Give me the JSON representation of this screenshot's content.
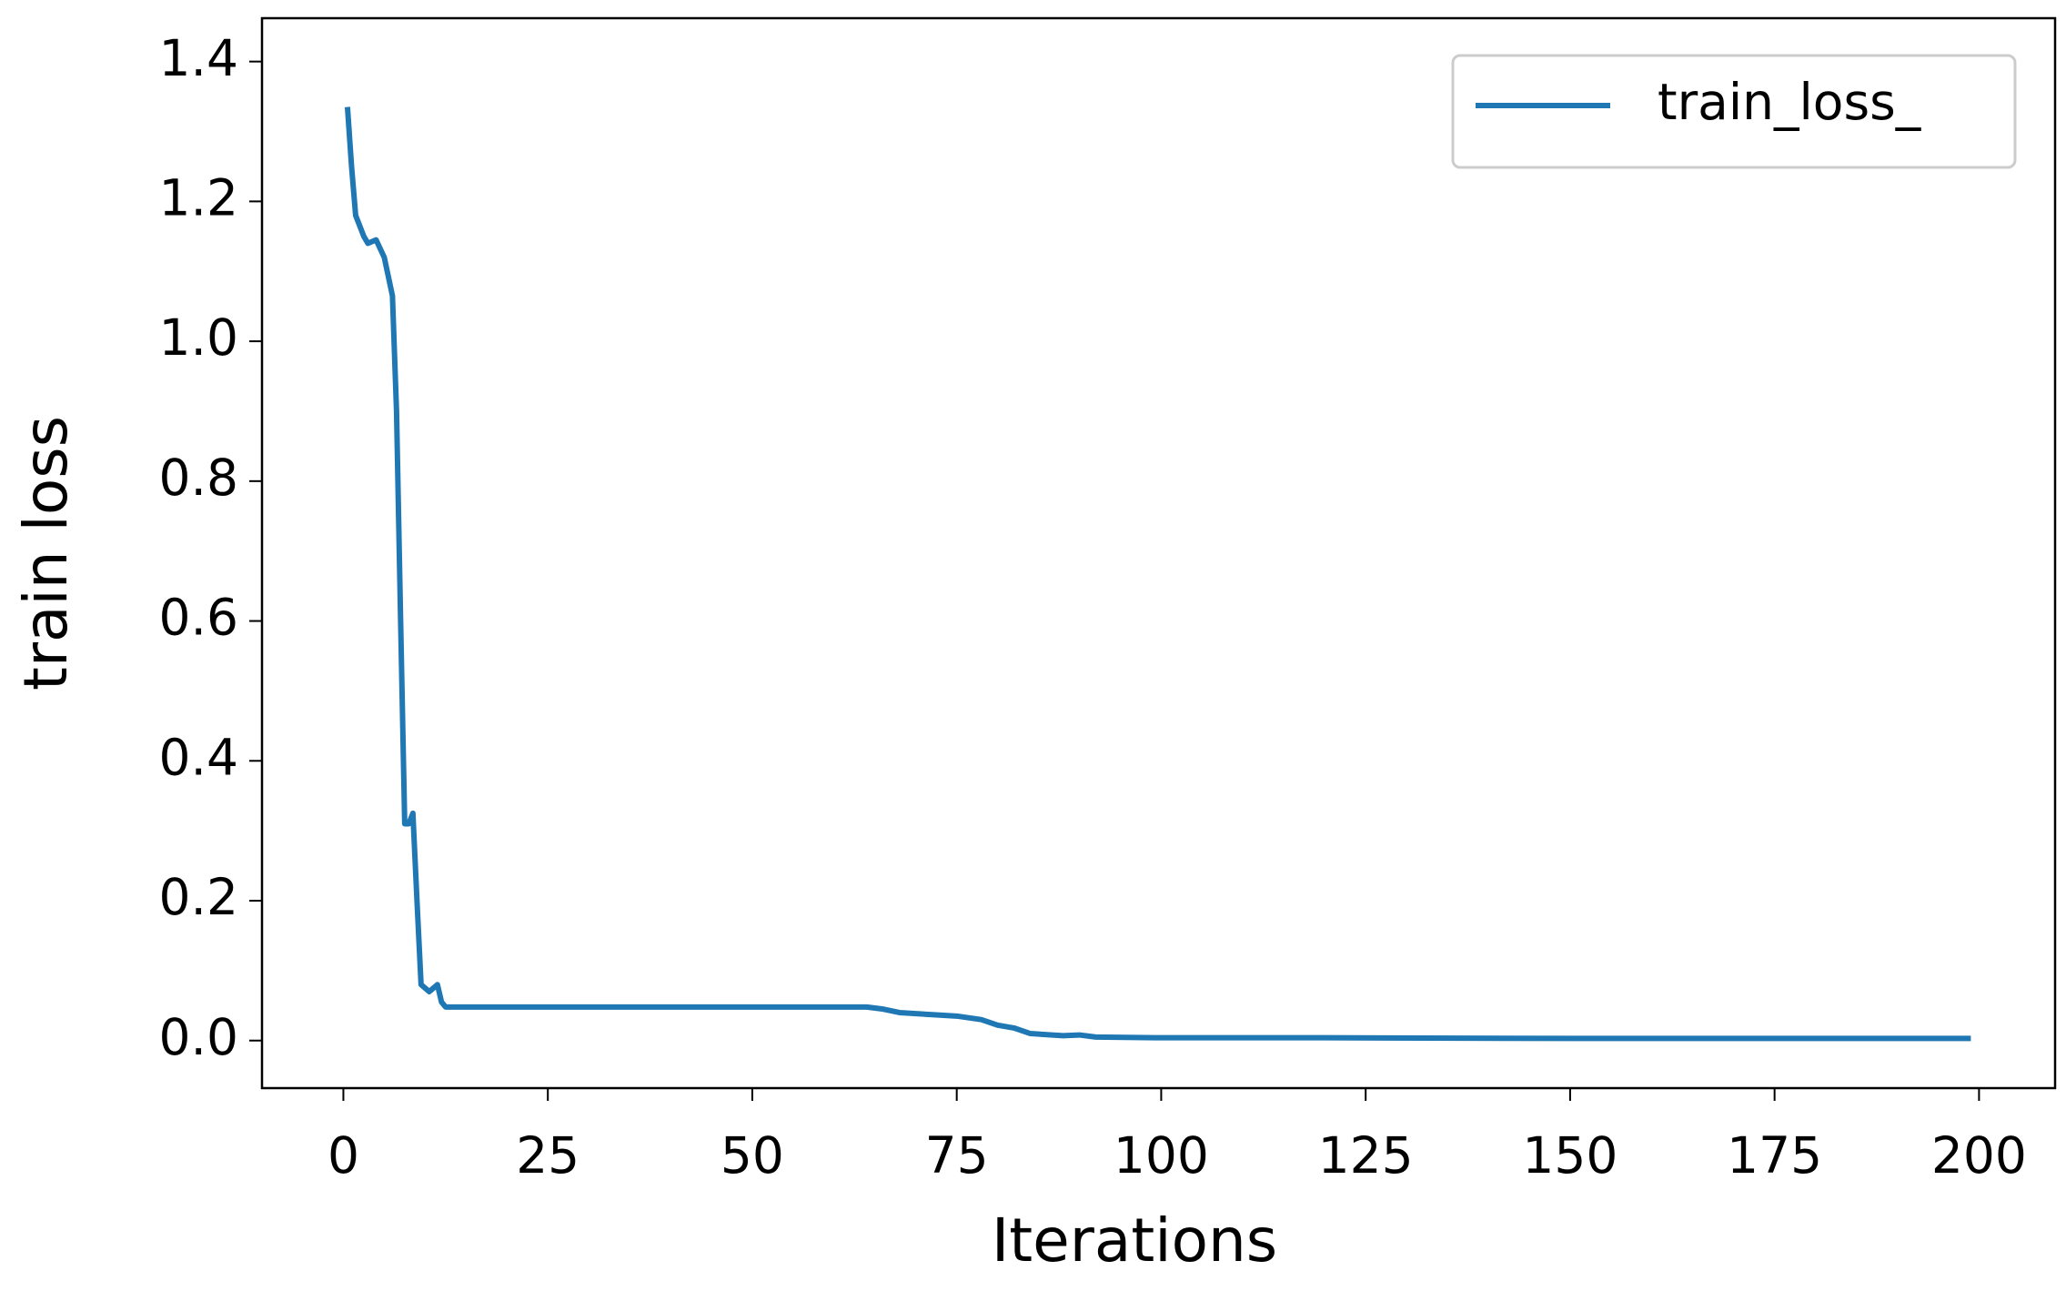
{
  "chart_data": {
    "type": "line",
    "xlabel": "Iterations",
    "ylabel": "train loss",
    "x": [
      0.5,
      1,
      1.5,
      2.5,
      3,
      4,
      5,
      6,
      6.5,
      7,
      7.5,
      8,
      8.5,
      9,
      9.5,
      10,
      10.5,
      11.5,
      12,
      12.5,
      15,
      25,
      50,
      64,
      66,
      68,
      72,
      75,
      78,
      80,
      82,
      84,
      88,
      90,
      92,
      100,
      120,
      150,
      175,
      199
    ],
    "series": [
      {
        "name": "train_loss_",
        "color": "#1f77b4",
        "values": [
          1.335,
          1.25,
          1.18,
          1.15,
          1.14,
          1.145,
          1.12,
          1.065,
          0.9,
          0.6,
          0.31,
          0.31,
          0.325,
          0.2,
          0.08,
          0.075,
          0.07,
          0.08,
          0.055,
          0.048,
          0.048,
          0.048,
          0.048,
          0.048,
          0.045,
          0.04,
          0.037,
          0.035,
          0.03,
          0.022,
          0.018,
          0.01,
          0.007,
          0.008,
          0.005,
          0.004,
          0.004,
          0.003,
          0.003,
          0.003
        ]
      }
    ],
    "xlim": [
      -9.95,
      209.3
    ],
    "ylim": [
      -0.068,
      1.462
    ],
    "xticks": [
      0,
      25,
      50,
      75,
      100,
      125,
      150,
      175,
      200
    ],
    "yticks": [
      {
        "value": 0,
        "label": "0.0"
      },
      {
        "value": 0.2,
        "label": "0.2"
      },
      {
        "value": 0.4,
        "label": "0.4"
      },
      {
        "value": 0.6,
        "label": "0.6"
      },
      {
        "value": 0.8,
        "label": "0.8"
      },
      {
        "value": 1.0,
        "label": "1.0"
      },
      {
        "value": 1.2,
        "label": "1.2"
      },
      {
        "value": 1.4,
        "label": "1.4"
      }
    ],
    "legend": "upper right",
    "grid": false
  }
}
